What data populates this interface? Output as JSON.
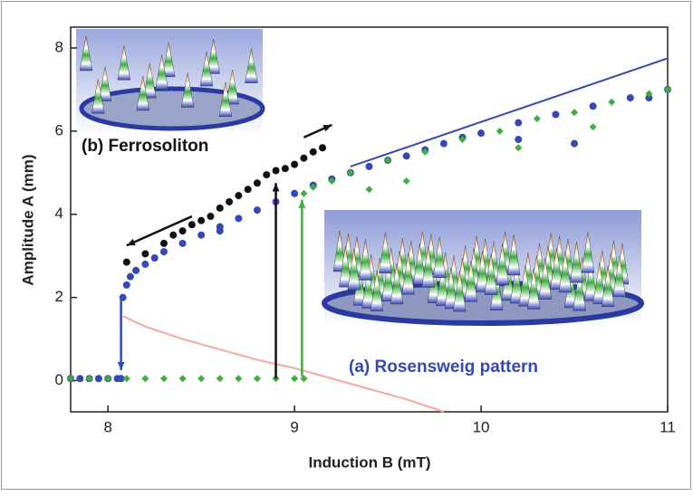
{
  "chart_data": {
    "type": "scatter",
    "xlabel": "Induction B (mT)",
    "ylabel": "Amplitude A (mm)",
    "xlim": [
      7.8,
      11
    ],
    "ylim": [
      -0.75,
      8.5
    ],
    "xticks": [
      8,
      9,
      10,
      11
    ],
    "yticks": [
      0,
      2,
      4,
      6,
      8
    ],
    "annotations": [
      "(b) Ferrosoliton",
      "(a) Rosensweig pattern"
    ],
    "series": [
      {
        "color": "#3548b8",
        "mode": "markers",
        "marker": "circle",
        "x": [
          7.8,
          7.85,
          7.9,
          7.95,
          8.0,
          8.05,
          8.07,
          8.08,
          8.1,
          8.12,
          8.15,
          8.2,
          8.25,
          8.3,
          8.4,
          8.5,
          8.6,
          8.6,
          8.7,
          8.8,
          8.9,
          9.0,
          9.1,
          9.2,
          9.3,
          9.4,
          9.5,
          9.6,
          9.7,
          9.8,
          9.9,
          10.0,
          10.2,
          10.2,
          10.4,
          10.5,
          10.6,
          10.8,
          10.9,
          11.0
        ],
        "y": [
          0.05,
          0.05,
          0.05,
          0.05,
          0.05,
          0.05,
          0.05,
          2.0,
          2.3,
          2.5,
          2.65,
          2.8,
          2.95,
          3.1,
          3.3,
          3.5,
          3.7,
          3.6,
          3.9,
          4.1,
          4.3,
          4.5,
          4.7,
          4.85,
          5.0,
          5.15,
          5.3,
          5.4,
          5.55,
          5.7,
          5.85,
          5.95,
          6.2,
          5.8,
          6.4,
          5.7,
          6.6,
          6.8,
          6.8,
          7.0
        ]
      },
      {
        "color": "#3fae3f",
        "mode": "markers",
        "marker": "diamond",
        "x": [
          7.8,
          7.9,
          8.0,
          8.1,
          8.2,
          8.3,
          8.4,
          8.5,
          8.6,
          8.7,
          8.8,
          8.9,
          9.0,
          9.05,
          9.05,
          9.1,
          9.2,
          9.3,
          9.4,
          9.5,
          9.6,
          9.7,
          9.9,
          10.1,
          10.2,
          10.3,
          10.5,
          10.6,
          10.7,
          10.9,
          11.0
        ],
        "y": [
          0.05,
          0.05,
          0.05,
          0.05,
          0.05,
          0.05,
          0.05,
          0.05,
          0.05,
          0.05,
          0.05,
          0.05,
          0.05,
          0.05,
          4.5,
          4.65,
          4.8,
          5.0,
          4.6,
          5.3,
          4.8,
          5.5,
          5.8,
          6.0,
          5.6,
          6.3,
          6.45,
          6.1,
          6.7,
          6.9,
          7.0
        ]
      },
      {
        "color": "#111111",
        "mode": "markers",
        "marker": "circle",
        "x": [
          8.1,
          8.2,
          8.3,
          8.35,
          8.4,
          8.45,
          8.5,
          8.55,
          8.6,
          8.65,
          8.7,
          8.75,
          8.8,
          8.85,
          8.9,
          8.95,
          9.0,
          9.05,
          9.1,
          9.15
        ],
        "y": [
          2.85,
          3.05,
          3.3,
          3.5,
          3.6,
          3.75,
          3.85,
          3.95,
          4.15,
          4.3,
          4.45,
          4.6,
          4.75,
          4.95,
          5.05,
          5.1,
          5.2,
          5.35,
          5.5,
          5.6
        ]
      },
      {
        "color": "#3548b8",
        "mode": "line",
        "x": [
          9.3,
          11
        ],
        "y": [
          5.15,
          7.75
        ]
      },
      {
        "color": "#f4a9a0",
        "mode": "line",
        "x": [
          8.08,
          8.2,
          8.4,
          8.6,
          8.8,
          9.0,
          9.2,
          9.4,
          9.6,
          9.8
        ],
        "y": [
          1.55,
          1.3,
          1.0,
          0.75,
          0.5,
          0.3,
          0.05,
          -0.2,
          -0.45,
          -0.75
        ]
      }
    ],
    "arrows": [
      {
        "color": "#3548b8",
        "x": [
          8.07,
          8.07
        ],
        "y": [
          1.95,
          0.25
        ]
      },
      {
        "color": "#111111",
        "x": [
          8.9,
          8.9
        ],
        "y": [
          0.05,
          4.75
        ]
      },
      {
        "color": "#3fae3f",
        "x": [
          9.04,
          9.04
        ],
        "y": [
          0.1,
          4.35
        ]
      },
      {
        "color": "#111111",
        "x": [
          8.45,
          8.1
        ],
        "y": [
          3.95,
          3.25
        ]
      },
      {
        "color": "#111111",
        "x": [
          9.05,
          9.2
        ],
        "y": [
          5.85,
          6.15
        ]
      }
    ]
  }
}
